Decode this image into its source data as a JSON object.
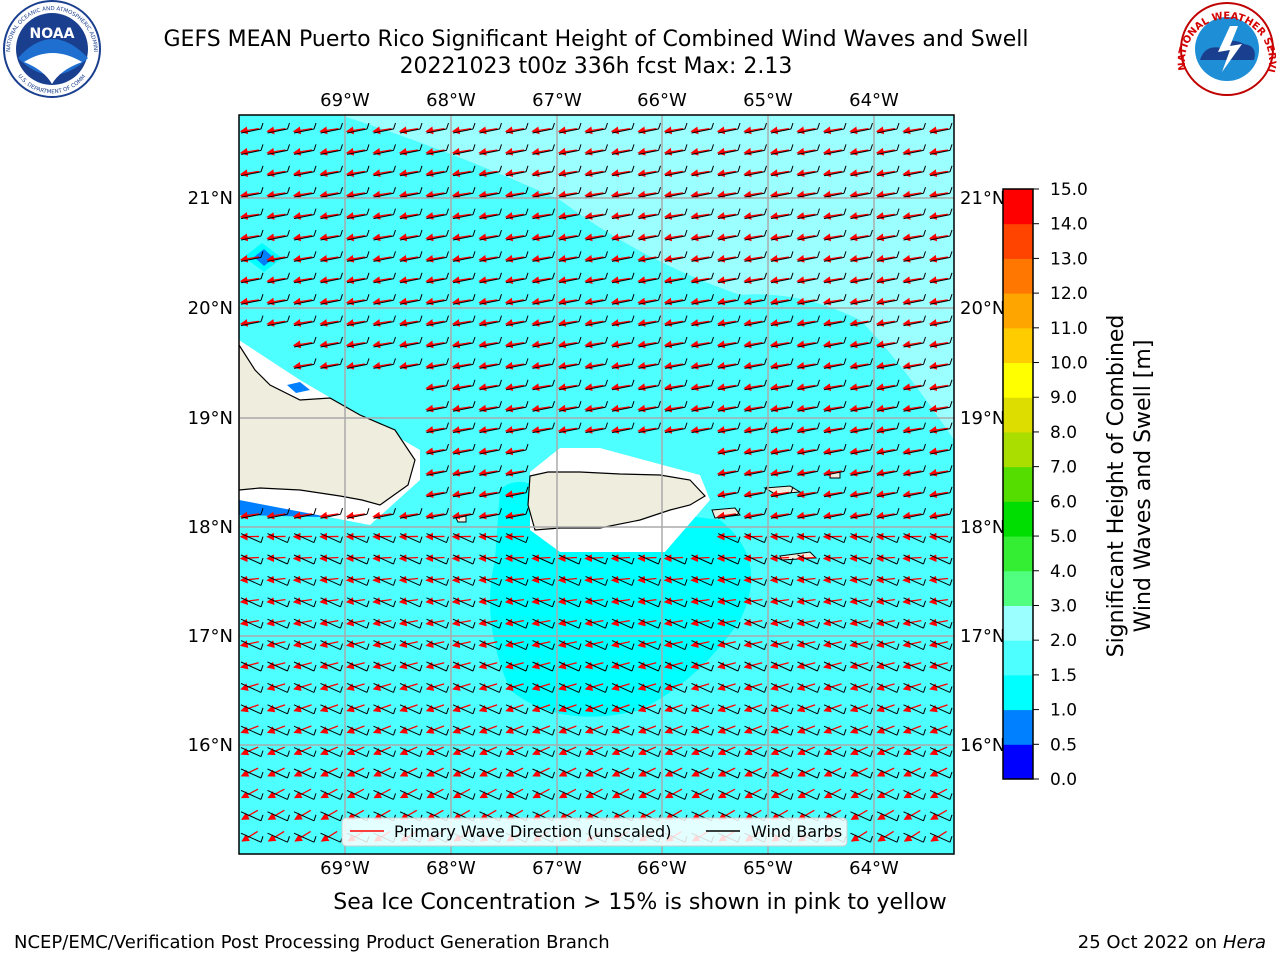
{
  "title_line1": "GEFS MEAN Puerto Rico Significant Height of Combined Wind Waves and Swell",
  "title_line2": "20221023 t00z 336h fcst   Max: 2.13",
  "logos": {
    "noaa_text": "NOAA",
    "noaa_ring": "NATIONAL OCEANIC AND ATMOSPHERIC ADMINISTRATION",
    "noaa_ring_bottom": "U.S. DEPARTMENT OF COMMERCE",
    "nws_ring": "NATIONAL WEATHER SERVICE"
  },
  "map": {
    "lon_labels": [
      "69°W",
      "68°W",
      "67°W",
      "66°W",
      "65°W",
      "64°W"
    ],
    "lat_labels": [
      "21°N",
      "20°N",
      "19°N",
      "18°N",
      "17°N",
      "16°N"
    ],
    "colors": {
      "ocean_base": "#4dffff",
      "calm": "#9bffff",
      "land": "#efedde",
      "coast": "#000000",
      "wave_arrow": "#ff0000",
      "barb": "#000000"
    }
  },
  "legend": {
    "wave": "Primary Wave Direction (unscaled)",
    "barbs": "Wind Barbs"
  },
  "colorbar": {
    "label_line1": "Significant Height of Combined",
    "label_line2": "Wind Waves and Swell [m]",
    "ticks": [
      "0.0",
      "0.5",
      "1.0",
      "1.5",
      "2.0",
      "3.0",
      "4.0",
      "5.0",
      "6.0",
      "7.0",
      "8.0",
      "9.0",
      "10.0",
      "11.0",
      "12.0",
      "13.0",
      "14.0",
      "15.0"
    ],
    "colors": [
      "#0000ff",
      "#0080ff",
      "#00ffff",
      "#4dffff",
      "#9bffff",
      "#50ff80",
      "#33ee33",
      "#00dd00",
      "#55dd00",
      "#aadd00",
      "#dddd00",
      "#ffff00",
      "#ffcc00",
      "#ffa500",
      "#ff7700",
      "#ff4400",
      "#ff0000"
    ]
  },
  "footer": {
    "ice_note": "Sea Ice Concentration > 15% is shown in pink to yellow",
    "credit": "NCEP/EMC/Verification Post Processing Product Generation Branch",
    "date_prefix": "25 Oct 2022 on ",
    "date_machine": "Hera"
  }
}
